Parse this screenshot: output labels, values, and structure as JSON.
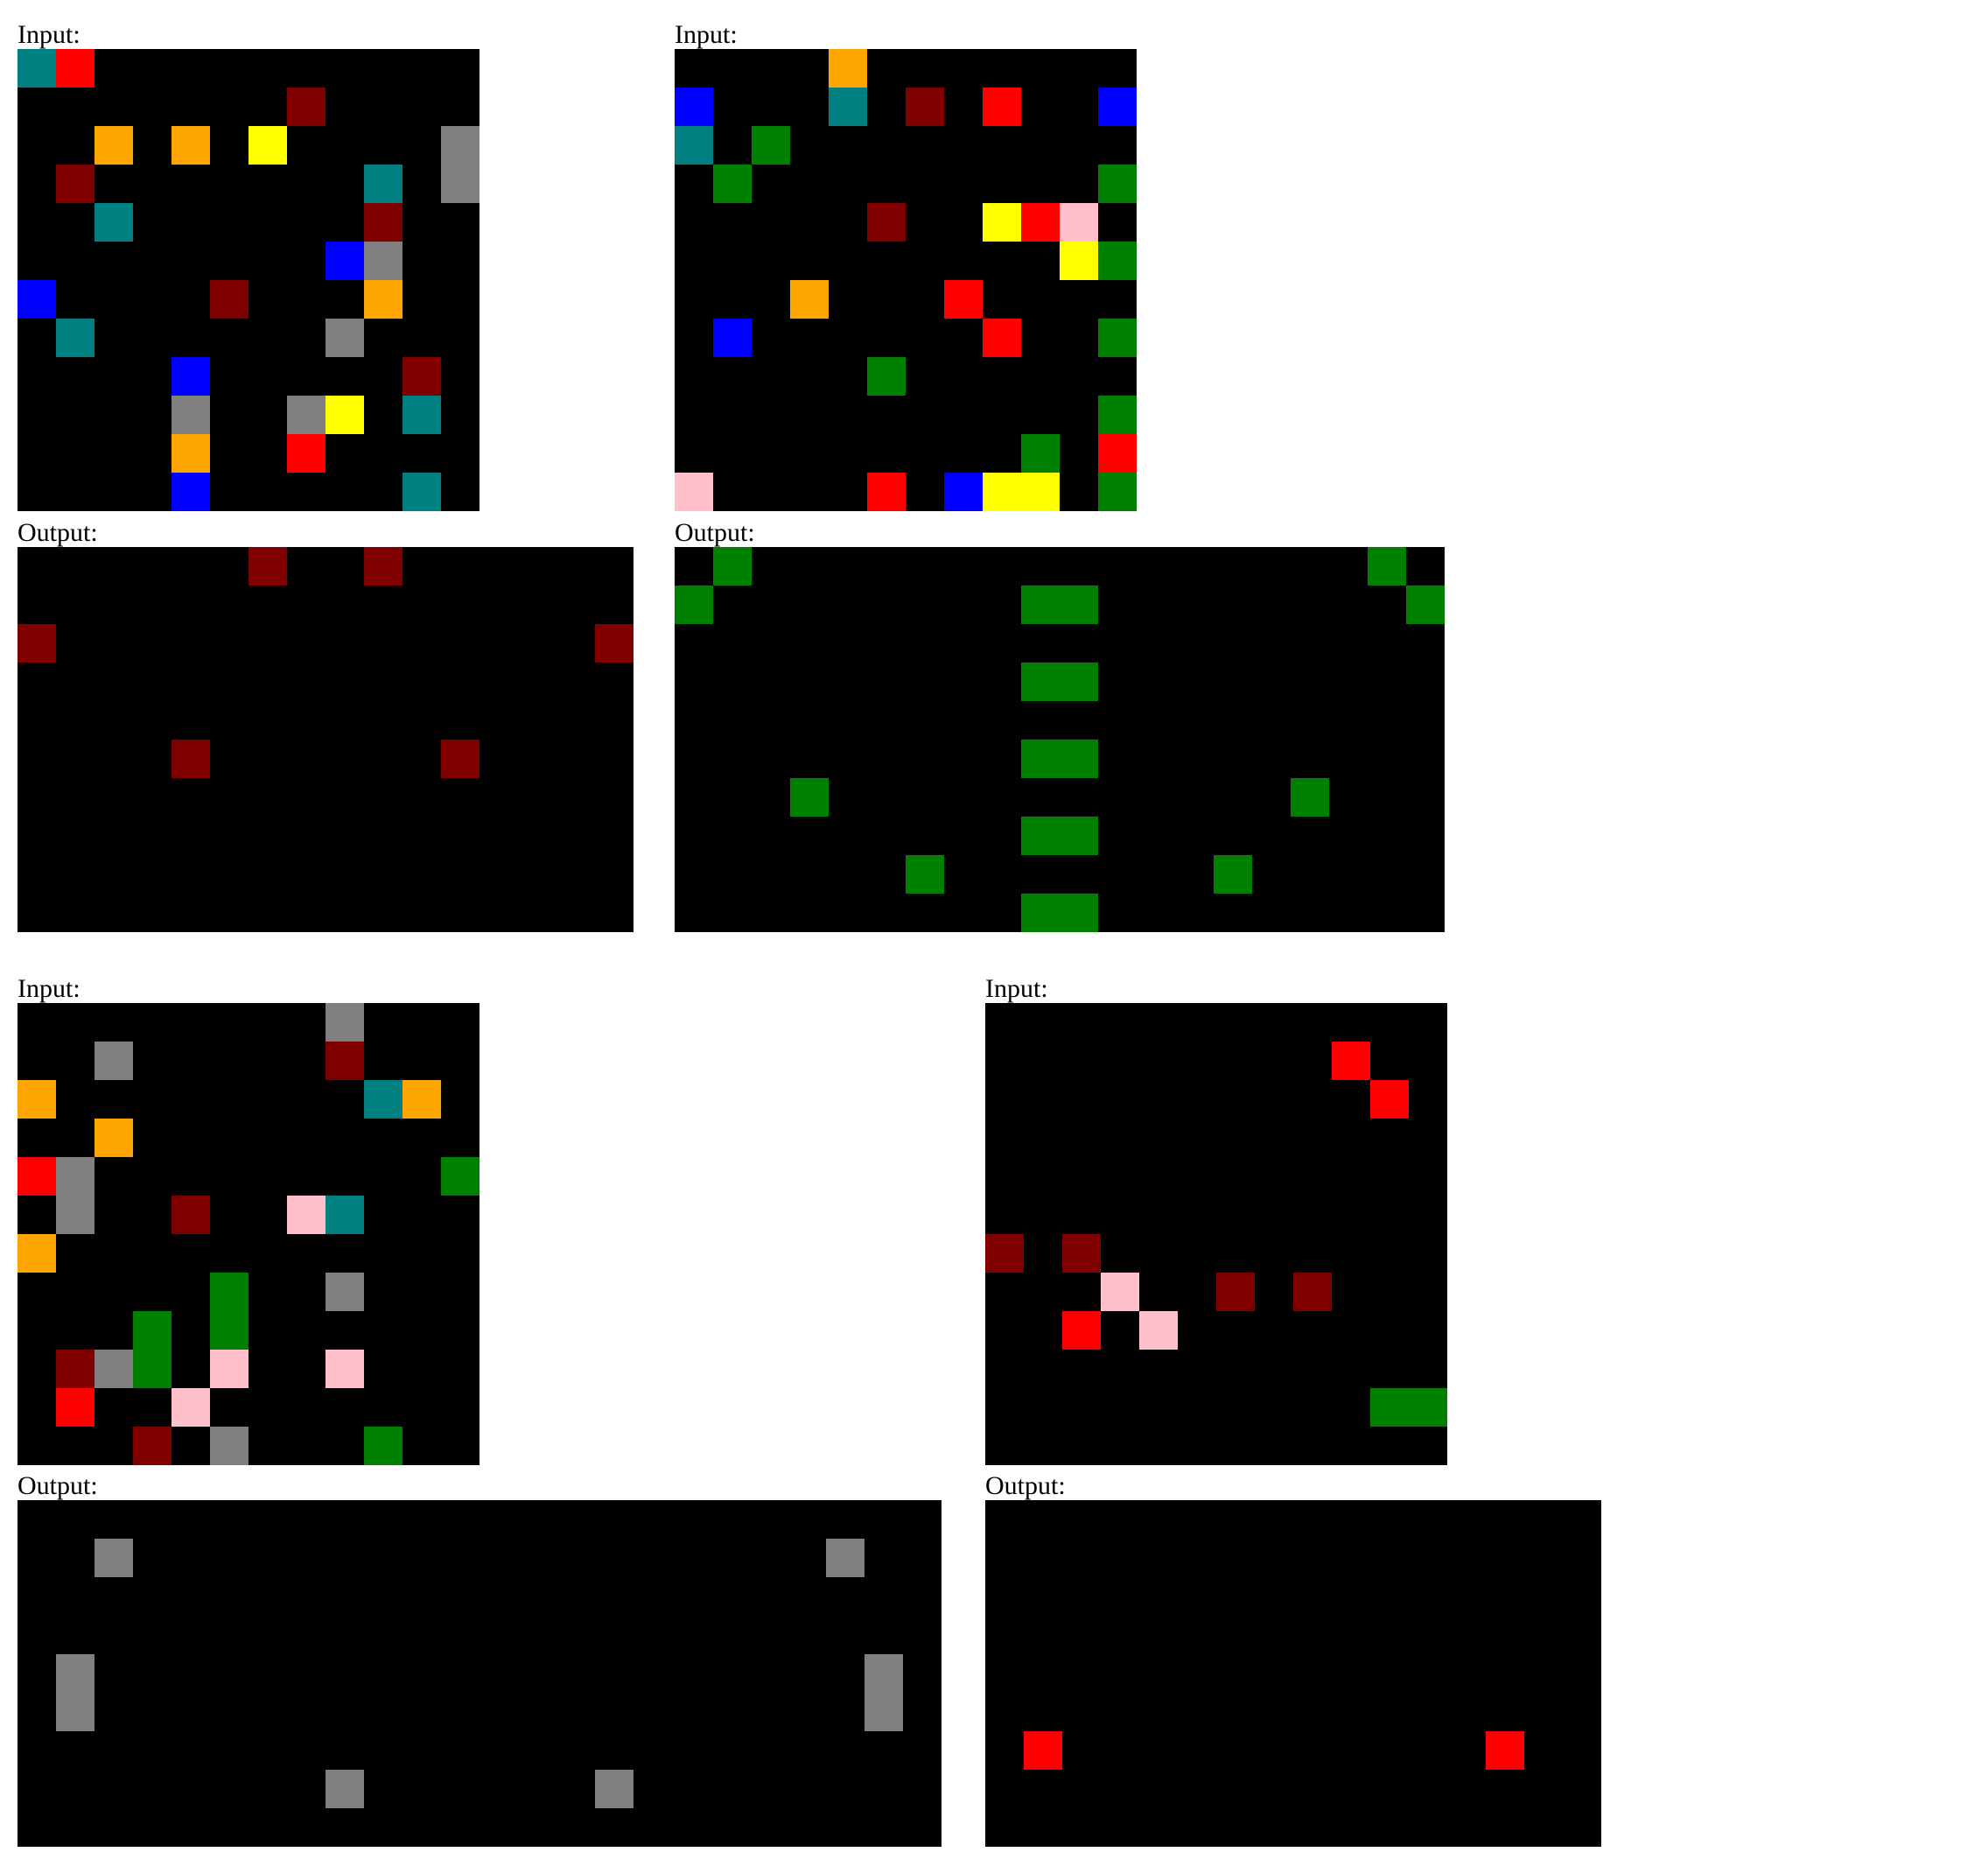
{
  "labels": {
    "input": "Input:",
    "output": "Output:"
  },
  "palette": {
    "0": "#000000",
    "1": "#0000ff",
    "2": "#ff0000",
    "3": "#008000",
    "4": "#ffff00",
    "5": "#808080",
    "6": "#ffc0cb",
    "7": "#ffa500",
    "8": "#008080",
    "9": "#800000"
  },
  "examples": [
    {
      "input": [
        "820000000000",
        "000000090000",
        "007070400005",
        "090000000805",
        "008000000900",
        "000000001500",
        "100009000700",
        "080000005000",
        "000010000090",
        "000050054080",
        "000070020000",
        "000010000080"
      ],
      "output": [
        "0000009009000000",
        "0000000000000000",
        "9000000000000009",
        "0000000000000000",
        "0000000000000000",
        "0000900000090000",
        "0000000000000000",
        "0000000000000000",
        "0000000000000000",
        "0000000000000000"
      ]
    },
    {
      "input": [
        "000070000000",
        "100080902001",
        "803000000000",
        "030000000003",
        "000009004260",
        "000000000043",
        "000700020000",
        "010000002003",
        "000003000000",
        "000000000003",
        "000000000302",
        "600002014403"
      ],
      "output": [
        "03000000000000000030",
        "30000000033000000003",
        "00000000000000000000",
        "00000000033000000000",
        "00000000000000000000",
        "00000000033000000000",
        "00030000000000003000",
        "00000000033000000000",
        "00000030000000300000",
        "00000000033000000000"
      ]
    },
    {
      "input": [
        "000000005000",
        "005000009000",
        "700000000870",
        "007000000000",
        "250000000003",
        "050090068000",
        "700000000000",
        "000003005000",
        "000303000000",
        "095306006000",
        "020060000000",
        "000905000300"
      ],
      "output": [
        "000000000000000000000000",
        "005000000000000000000500",
        "000000000000000000000000",
        "000000000000000000000000",
        "050000000000000000000050",
        "050000000000000000000050",
        "000000000000000000000000",
        "000000005000000500000000",
        "000000000000000000000000"
      ]
    },
    {
      "input": [
        "000000000000",
        "000000000200",
        "000000000020",
        "000000000000",
        "000000000000",
        "000000000000",
        "909000000000",
        "000600909000",
        "002060000000",
        "000000000000",
        "000000000033",
        "000000000000"
      ],
      "output": [
        "0000000000000000",
        "0000000000000000",
        "0000000000000000",
        "0000000000000000",
        "0000000000000000",
        "0000000000000000",
        "0200000000000200",
        "0000000000000000",
        "0000000000000000"
      ]
    }
  ]
}
